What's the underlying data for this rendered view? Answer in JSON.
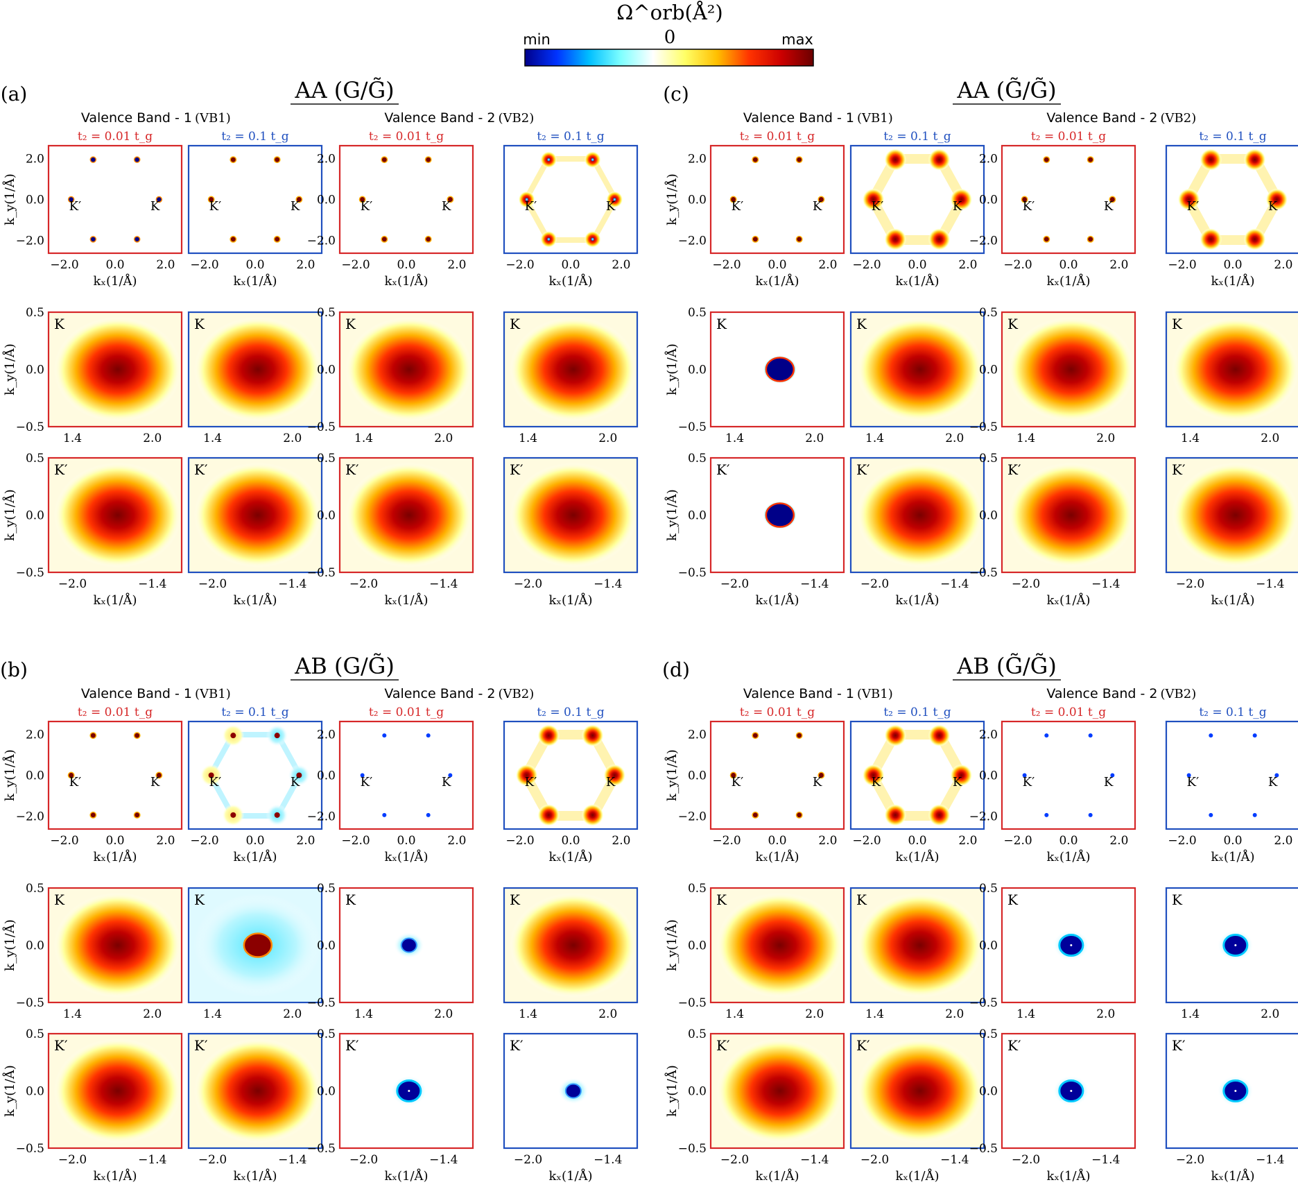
{
  "colorbar": {
    "title": "Ω^orb(Å²)",
    "min_label": "min",
    "zero_label": "0",
    "max_label": "max",
    "colors": [
      "#00008b",
      "#0033ff",
      "#00bfff",
      "#7fffff",
      "#ffffff",
      "#ffff66",
      "#ffbf00",
      "#ff3300",
      "#cc0000",
      "#6b0000"
    ]
  },
  "axis_labels": {
    "kx": "kₓ(1/Å)",
    "ky": "k_y(1/Å)"
  },
  "band_titles": {
    "vb1": "Valence Band - 1",
    "vb1_abbr": "(VB1)",
    "vb2": "Valence Band - 2",
    "vb2_abbr": "(VB2)"
  },
  "t2_labels": {
    "small": "t₂  =  0.01 t_g",
    "large": "t₂  =  0.1 t_g"
  },
  "frame_colors": {
    "small": "#d62728",
    "large": "#1f4fbf"
  },
  "valley_labels": {
    "K": "K",
    "Kp": "K′"
  },
  "ticks": {
    "full_x": [
      "−2.0",
      "0.0",
      "2.0"
    ],
    "full_y": [
      "2.0",
      "0.0",
      "−2.0"
    ],
    "zoomK_x": [
      "1.4",
      "2.0"
    ],
    "zoomKp_x": [
      "−2.0",
      "−1.4"
    ],
    "zoom_y": [
      "0.5",
      "0.0",
      "−0.5"
    ]
  },
  "panels": [
    {
      "letter": "(a)",
      "title": "AA (G/G̃)",
      "fields": [
        [
          3,
          5,
          5,
          7
        ],
        [
          6,
          6,
          6,
          6
        ],
        [
          6,
          6,
          6,
          6
        ]
      ]
    },
    {
      "letter": "(c)",
      "title": "AA (G̃/G̃)",
      "fields": [
        [
          5,
          6,
          5,
          6
        ],
        [
          3,
          6,
          6,
          6
        ],
        [
          3,
          6,
          6,
          6
        ]
      ]
    },
    {
      "letter": "(b)",
      "title": "AB (G/G̃)",
      "fields": [
        [
          5,
          9,
          1,
          6
        ],
        [
          6,
          4,
          2,
          6
        ],
        [
          6,
          6,
          1,
          2
        ]
      ]
    },
    {
      "letter": "(d)",
      "title": "AB (G̃/G̃)",
      "fields": [
        [
          5,
          6,
          1,
          1
        ],
        [
          6,
          6,
          1,
          1
        ],
        [
          6,
          6,
          1,
          1
        ]
      ]
    }
  ],
  "chart_data": {
    "type": "heatmap",
    "quantity": "orbital Berry curvature Ω^orb",
    "colorbar_range": [
      "min",
      "0",
      "max"
    ],
    "field_codes": {
      "1": "strong negative (min)",
      "2": "negative core",
      "3": "negative core in positive ring",
      "4": "positive core in negative halo",
      "5": "positive (max) spots",
      "6": "strong positive with extended lobes",
      "7": "positive ring around center",
      "9": "mixed positive/negative lobes"
    },
    "full_axes": {
      "kx_range": [
        -2.5,
        2.5
      ],
      "ky_range": [
        -2.5,
        2.5
      ],
      "xticks": [
        -2.0,
        0.0,
        2.0
      ],
      "yticks": [
        -2.0,
        0.0,
        2.0
      ]
    },
    "zoomK_axes": {
      "kx_range": [
        1.27,
        2.18
      ],
      "ky_range": [
        -0.5,
        0.5
      ],
      "xticks": [
        1.4,
        2.0
      ],
      "yticks": [
        -0.5,
        0.0,
        0.5
      ]
    },
    "zoomKp_axes": {
      "kx_range": [
        -2.18,
        -1.27
      ],
      "ky_range": [
        -0.5,
        0.5
      ],
      "xticks": [
        -2.0,
        -1.4
      ],
      "yticks": [
        -0.5,
        0.0,
        0.5
      ]
    },
    "valley_points": {
      "K": [
        1.7,
        0.0
      ],
      "K'": [
        -1.7,
        0.0
      ]
    },
    "columns": [
      "VB1, t2 = 0.01 tg",
      "VB1, t2 = 0.1 tg",
      "VB2, t2 = 0.01 tg",
      "VB2, t2 = 0.1 tg"
    ],
    "rows": [
      "full BZ",
      "zoom K",
      "zoom K'"
    ]
  }
}
